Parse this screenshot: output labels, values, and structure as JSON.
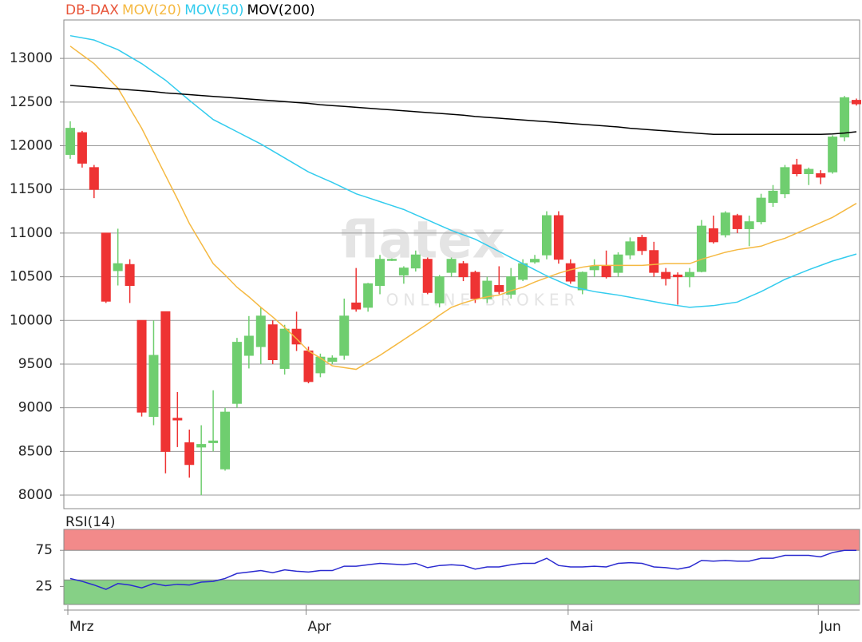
{
  "chart_data": [
    {
      "type": "candlestick",
      "categories": [
        "Mrz",
        null,
        null,
        null,
        null,
        null,
        null,
        null,
        null,
        null,
        null,
        null,
        null,
        null,
        null,
        null,
        null,
        null,
        null,
        null,
        "Apr",
        null,
        null,
        null,
        null,
        null,
        null,
        null,
        null,
        null,
        null,
        null,
        null,
        null,
        null,
        null,
        null,
        null,
        null,
        null,
        null,
        null,
        "Mai",
        null,
        null,
        null,
        null,
        null,
        null,
        null,
        null,
        null,
        null,
        null,
        null,
        null,
        null,
        null,
        null,
        null,
        null,
        null,
        null,
        "Jun",
        null,
        null,
        null
      ],
      "series": [
        {
          "name": "DB-DAX",
          "color": "#e8553a",
          "up_color": "#6fce6f",
          "down_color": "#ee3333",
          "open": [
            11900,
            12150,
            11750,
            11000,
            10570,
            10640,
            10000,
            8900,
            10100,
            8880,
            8600,
            8550,
            8600,
            8300,
            9050,
            9600,
            9700,
            9950,
            9450,
            9900,
            9650,
            9400,
            9530,
            9600,
            10200,
            10150,
            10400,
            10690,
            10520,
            10600,
            10700,
            10200,
            10550,
            10650,
            10550,
            10250,
            10400,
            10300,
            10470,
            10670,
            10750,
            11200,
            10650,
            10350,
            10580,
            10620,
            10550,
            10750,
            10950,
            10800,
            10550,
            10520,
            10500,
            10560,
            11050,
            10980,
            11200,
            11050,
            11130,
            11350,
            11450,
            11780,
            11680,
            11680,
            11700,
            12100,
            12520
          ],
          "high": [
            12280,
            12170,
            11780,
            11000,
            11050,
            10700,
            10000,
            10000,
            10100,
            9180,
            8750,
            8800,
            9200,
            9000,
            9800,
            10050,
            10150,
            10000,
            9950,
            10100,
            9700,
            9620,
            9600,
            10250,
            10600,
            10430,
            10750,
            10710,
            10620,
            10800,
            10720,
            10520,
            10720,
            10680,
            10570,
            10500,
            10620,
            10600,
            10700,
            10750,
            11250,
            11250,
            10700,
            10560,
            10700,
            10800,
            10780,
            10950,
            10980,
            10900,
            10600,
            10550,
            10600,
            11150,
            11200,
            11250,
            11220,
            11200,
            11450,
            11550,
            11780,
            11850,
            11750,
            11720,
            12120,
            12570,
            12540
          ],
          "low": [
            11850,
            11750,
            11400,
            10200,
            10400,
            10200,
            8900,
            8800,
            8250,
            8550,
            8200,
            8000,
            8500,
            8280,
            9000,
            9450,
            9500,
            9500,
            9380,
            9650,
            9280,
            9350,
            9500,
            9550,
            10100,
            10100,
            10300,
            10680,
            10420,
            10560,
            10300,
            10150,
            10500,
            10450,
            10200,
            10200,
            10300,
            10250,
            10450,
            10650,
            10700,
            10650,
            10420,
            10300,
            10500,
            10480,
            10500,
            10700,
            10750,
            10500,
            10400,
            10180,
            10380,
            10550,
            10880,
            10950,
            11000,
            10850,
            11100,
            11300,
            11400,
            11650,
            11550,
            11560,
            11680,
            12050,
            12460
          ],
          "close": [
            12200,
            11800,
            11500,
            10220,
            10650,
            10400,
            8950,
            9600,
            8500,
            8860,
            8350,
            8580,
            8620,
            8950,
            9750,
            9820,
            10050,
            9550,
            9900,
            9730,
            9300,
            9580,
            9570,
            10050,
            10130,
            10420,
            10700,
            10700,
            10600,
            10750,
            10320,
            10500,
            10700,
            10500,
            10250,
            10450,
            10330,
            10500,
            10650,
            10700,
            11200,
            10700,
            10450,
            10550,
            10620,
            10500,
            10750,
            10900,
            10800,
            10550,
            10480,
            10500,
            10550,
            11080,
            10900,
            11230,
            11050,
            11130,
            11400,
            11480,
            11750,
            11680,
            11730,
            11640,
            12100,
            12550,
            12480
          ]
        },
        {
          "name": "MOV(20)",
          "color": "#f5b942",
          "values": [
            13140,
            13040,
            12940,
            12800,
            12660,
            12430,
            12200,
            11930,
            11660,
            11390,
            11110,
            10880,
            10650,
            10520,
            10380,
            10270,
            10150,
            10040,
            9920,
            9790,
            9650,
            9570,
            9480,
            9460,
            9440,
            9520,
            9600,
            9690,
            9780,
            9870,
            9960,
            10060,
            10150,
            10200,
            10240,
            10270,
            10290,
            10340,
            10380,
            10440,
            10490,
            10540,
            10580,
            10610,
            10630,
            10630,
            10630,
            10630,
            10630,
            10640,
            10650,
            10650,
            10650,
            10700,
            10740,
            10780,
            10810,
            10830,
            10850,
            10900,
            10940,
            11000,
            11060,
            11120,
            11180,
            11260,
            11340
          ]
        },
        {
          "name": "MOV(50)",
          "color": "#33ccee",
          "values": [
            13260,
            13235,
            13210,
            13155,
            13100,
            13020,
            12940,
            12845,
            12750,
            12635,
            12520,
            12410,
            12300,
            12230,
            12160,
            12090,
            12020,
            11940,
            11860,
            11780,
            11700,
            11640,
            11580,
            11515,
            11450,
            11405,
            11360,
            11315,
            11270,
            11210,
            11150,
            11090,
            11030,
            10980,
            10930,
            10860,
            10790,
            10720,
            10650,
            10580,
            10510,
            10450,
            10390,
            10360,
            10330,
            10310,
            10290,
            10265,
            10240,
            10215,
            10190,
            10170,
            10150,
            10160,
            10170,
            10190,
            10210,
            10270,
            10330,
            10400,
            10470,
            10525,
            10580,
            10630,
            10680,
            10720,
            10760
          ]
        },
        {
          "name": "MOV(200)",
          "color": "#000000",
          "values": [
            12690,
            12680,
            12670,
            12660,
            12650,
            12640,
            12630,
            12620,
            12605,
            12595,
            12585,
            12575,
            12565,
            12555,
            12545,
            12535,
            12525,
            12515,
            12505,
            12495,
            12485,
            12470,
            12460,
            12450,
            12440,
            12430,
            12420,
            12410,
            12400,
            12390,
            12380,
            12370,
            12360,
            12350,
            12335,
            12325,
            12315,
            12305,
            12295,
            12285,
            12275,
            12265,
            12255,
            12245,
            12235,
            12225,
            12215,
            12200,
            12190,
            12180,
            12170,
            12160,
            12150,
            12140,
            12130,
            12130,
            12130,
            12130,
            12130,
            12130,
            12130,
            12130,
            12130,
            12130,
            12135,
            12145,
            12160
          ]
        }
      ],
      "ylim": [
        7845,
        13440
      ],
      "yticks": [
        8000,
        8500,
        9000,
        9500,
        10000,
        10500,
        11000,
        11500,
        12000,
        12500,
        13000
      ],
      "grid": true,
      "watermark": {
        "logo": "flatex",
        "tagline": "ONLINE BROKER"
      }
    },
    {
      "type": "line",
      "series": [
        {
          "name": "RSI(14)",
          "color": "#2b2bd0",
          "values": [
            36,
            32,
            27,
            21,
            29,
            27,
            23,
            29,
            26,
            28,
            27,
            31,
            32,
            36,
            43,
            45,
            47,
            44,
            48,
            46,
            45,
            47,
            47,
            53,
            53,
            55,
            57,
            56,
            55,
            57,
            51,
            54,
            55,
            54,
            49,
            52,
            52,
            55,
            57,
            57,
            64,
            54,
            52,
            52,
            53,
            52,
            57,
            58,
            57,
            52,
            51,
            49,
            52,
            61,
            60,
            61,
            60,
            60,
            64,
            64,
            68,
            68,
            68,
            66,
            72,
            75,
            75
          ]
        }
      ],
      "ylim": [
        0,
        104
      ],
      "yticks": [
        25,
        75
      ],
      "zones": [
        {
          "from": 75,
          "to": 104,
          "color": "#f28a8a"
        },
        {
          "from": 0,
          "to": 34,
          "color": "#86d086"
        }
      ]
    }
  ]
}
